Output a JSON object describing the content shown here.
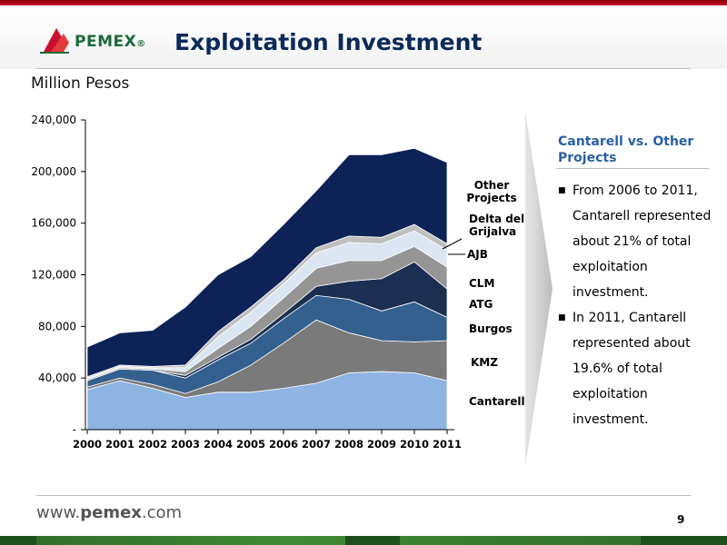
{
  "header": {
    "title": "Exploitation Investment",
    "logo_text": "PEMEX",
    "logo_mark": "®"
  },
  "subtitle": "Million Pesos",
  "chart_data": {
    "type": "area",
    "stacked": true,
    "x": [
      "2000",
      "2001",
      "2002",
      "2003",
      "2004",
      "2005",
      "2006",
      "2007",
      "2008",
      "2009",
      "2010",
      "2011"
    ],
    "ylim": [
      0,
      240000
    ],
    "yticks": [
      {
        "value": 0,
        "label": "-"
      },
      {
        "value": 40000,
        "label": "40,000"
      },
      {
        "value": 80000,
        "label": "80,000"
      },
      {
        "value": 120000,
        "label": "120,000"
      },
      {
        "value": 160000,
        "label": "160,000"
      },
      {
        "value": 200000,
        "label": "200,000"
      },
      {
        "value": 240000,
        "label": "240,000"
      }
    ],
    "series": [
      {
        "name": "Cantarell",
        "color": "#8eb4e3",
        "values": [
          31000,
          38000,
          32000,
          25000,
          29000,
          29000,
          32000,
          36000,
          44000,
          45000,
          44000,
          38000
        ]
      },
      {
        "name": "KMZ",
        "color": "#7a7a7a",
        "values": [
          2000,
          2000,
          3000,
          3000,
          8000,
          21000,
          35000,
          49000,
          31000,
          24000,
          24000,
          31000
        ]
      },
      {
        "name": "Burgos",
        "color": "#34608f",
        "values": [
          5000,
          7000,
          11000,
          12000,
          17000,
          17000,
          19000,
          19000,
          26000,
          23000,
          31000,
          18000
        ]
      },
      {
        "name": "ATG",
        "color": "#1c2f50",
        "values": [
          0,
          0,
          0,
          2000,
          2000,
          3000,
          4000,
          7000,
          14000,
          25000,
          31000,
          22000
        ]
      },
      {
        "name": "CLM",
        "color": "#959595",
        "values": [
          1000,
          1000,
          1000,
          3000,
          7000,
          10000,
          12000,
          14000,
          16000,
          14000,
          12000,
          17000
        ]
      },
      {
        "name": "AJB",
        "color": "#dce6f2",
        "values": [
          1000,
          1000,
          1000,
          3000,
          9000,
          11000,
          11000,
          12000,
          14000,
          13000,
          12000,
          13000
        ]
      },
      {
        "name": "Delta del Grijalva",
        "color": "#bfbfbf",
        "values": [
          1000,
          1000,
          1000,
          2000,
          4000,
          4000,
          3000,
          4000,
          5000,
          5000,
          5000,
          5000
        ]
      },
      {
        "name": "Other Projects",
        "color": "#0d2257",
        "values": [
          23000,
          25000,
          28000,
          45000,
          44000,
          39000,
          43000,
          44000,
          63000,
          64000,
          59000,
          63000
        ]
      }
    ],
    "legend_labels": [
      {
        "series": "Other Projects",
        "lines": [
          "Other",
          "Projects"
        ],
        "bold": true
      },
      {
        "series": "Delta del Grijalva",
        "lines": [
          "Delta del",
          "Grijalva"
        ]
      },
      {
        "series": "AJB",
        "lines": [
          "AJB"
        ]
      },
      {
        "series": "CLM",
        "lines": [
          "CLM"
        ]
      },
      {
        "series": "ATG",
        "lines": [
          "ATG"
        ]
      },
      {
        "series": "Burgos",
        "lines": [
          "Burgos"
        ]
      },
      {
        "series": "KMZ",
        "lines": [
          "KMZ"
        ]
      },
      {
        "series": "Cantarell",
        "lines": [
          "Cantarell"
        ]
      }
    ]
  },
  "side": {
    "title": "Cantarell vs. Other Projects",
    "bullets": [
      "From 2006 to 2011, Cantarell represented about 21% of total exploitation investment.",
      "In 2011, Cantarell represented about 19.6% of total exploitation investment."
    ],
    "bullet_glyph": "■"
  },
  "footer": {
    "url_prefix": "www.",
    "url_brand": "pemex",
    "url_suffix": ".com",
    "page_number": "9"
  }
}
